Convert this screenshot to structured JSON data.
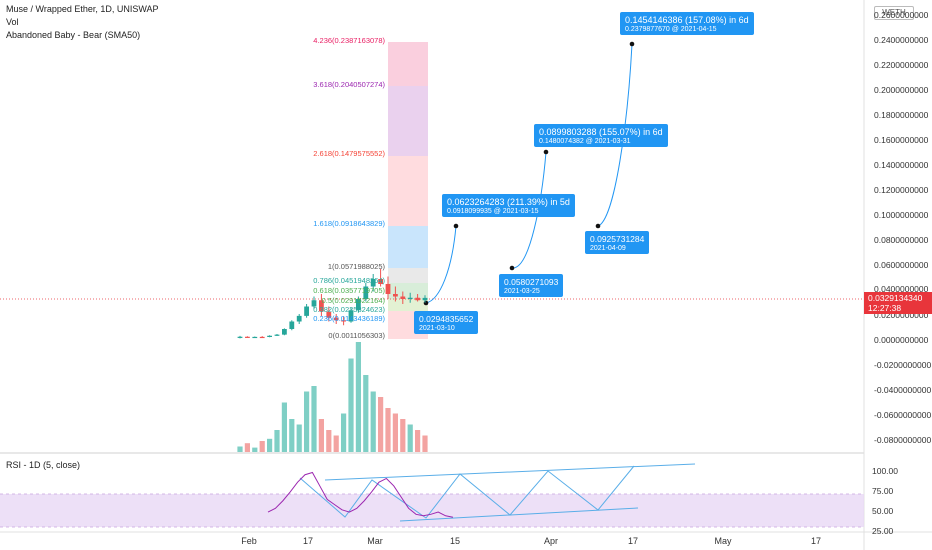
{
  "legend": {
    "title": "Muse / Wrapped Ether, 1D, UNISWAP",
    "vol": "Vol",
    "indicator": "Abandoned Baby - Bear (SMA50)",
    "rsi": "RSI - 1D (5, close)"
  },
  "currency_button": "WETH",
  "price_axis": [
    "0.2600000000",
    "0.2400000000",
    "0.2200000000",
    "0.2000000000",
    "0.1800000000",
    "0.1600000000",
    "0.1400000000",
    "0.1200000000",
    "0.1000000000",
    "0.0800000000",
    "0.0600000000",
    "0.0400000000",
    "0.0200000000",
    "0.0000000000",
    "-0.0200000000",
    "-0.0400000000",
    "-0.0600000000",
    "-0.0800000000"
  ],
  "current_price": {
    "value": "0.0329134340",
    "countdown": "12:27:38"
  },
  "rsi_axis": [
    "100.00",
    "75.00",
    "50.00",
    "25.00"
  ],
  "time_axis": [
    "Feb",
    "17",
    "Mar",
    "15",
    "Apr",
    "17",
    "May",
    "17"
  ],
  "fib_levels": [
    {
      "label": "4.236(0.2387163078)",
      "color": "#e91e63"
    },
    {
      "label": "3.618(0.2040507274)",
      "color": "#9c27b0"
    },
    {
      "label": "2.618(0.1479575552)",
      "color": "#f44336"
    },
    {
      "label": "1.618(0.0918643829)",
      "color": "#2196f3"
    },
    {
      "label": "1(0.0571988025)",
      "color": "#555555"
    },
    {
      "label": "0.786(0.0451948264)",
      "color": "#26a69a"
    },
    {
      "label": "0.618(0.0357719705)",
      "color": "#4caf50"
    },
    {
      "label": "0.5(0.0291522164)",
      "color": "#4caf50"
    },
    {
      "label": "0.382(0.0225324623)",
      "color": "#26a69a"
    },
    {
      "label": "0.236(0.0143436189)",
      "color": "#2196f3"
    },
    {
      "label": "0(0.0011056303)",
      "color": "#555555"
    }
  ],
  "callouts": [
    {
      "line1": "0.1454146386 (157.08%) in 6d",
      "line2": "0.2379877670 @ 2021-04-15"
    },
    {
      "line1": "0.0899803288 (155.07%) in 6d",
      "line2": "0.1480074382 @ 2021-03-31"
    },
    {
      "line1": "0.0623264283 (211.39%) in 5d",
      "line2": "0.0918099935 @ 2021-03-15"
    },
    {
      "line1": "0.0925731284",
      "line2": "2021-04-09"
    },
    {
      "line1": "0.0580271093",
      "line2": "2021-03-25"
    },
    {
      "line1": "0.0294835652",
      "line2": "2021-03-10"
    }
  ],
  "colors": {
    "up": "#26a69a",
    "down": "#ef5350",
    "accent": "#2196f3",
    "rsi_line": "#9c27b0"
  },
  "chart_data": {
    "type": "candlestick",
    "price_range": [
      -0.09,
      0.265
    ],
    "candles": [
      {
        "o": 0.0015,
        "h": 0.0025,
        "l": 0.0005,
        "c": 0.0018
      },
      {
        "o": 0.0018,
        "h": 0.0022,
        "l": 0.001,
        "c": 0.0015
      },
      {
        "o": 0.0015,
        "h": 0.002,
        "l": 0.0012,
        "c": 0.0017
      },
      {
        "o": 0.0017,
        "h": 0.0023,
        "l": 0.0013,
        "c": 0.0016
      },
      {
        "o": 0.0016,
        "h": 0.003,
        "l": 0.0014,
        "c": 0.0026
      },
      {
        "o": 0.0026,
        "h": 0.004,
        "l": 0.0024,
        "c": 0.0035
      },
      {
        "o": 0.0035,
        "h": 0.0085,
        "l": 0.003,
        "c": 0.008
      },
      {
        "o": 0.008,
        "h": 0.015,
        "l": 0.007,
        "c": 0.014
      },
      {
        "o": 0.014,
        "h": 0.02,
        "l": 0.012,
        "c": 0.0185
      },
      {
        "o": 0.0185,
        "h": 0.028,
        "l": 0.017,
        "c": 0.026
      },
      {
        "o": 0.026,
        "h": 0.034,
        "l": 0.024,
        "c": 0.031
      },
      {
        "o": 0.031,
        "h": 0.036,
        "l": 0.018,
        "c": 0.022
      },
      {
        "o": 0.022,
        "h": 0.026,
        "l": 0.014,
        "c": 0.017
      },
      {
        "o": 0.017,
        "h": 0.02,
        "l": 0.012,
        "c": 0.015
      },
      {
        "o": 0.015,
        "h": 0.018,
        "l": 0.011,
        "c": 0.014
      },
      {
        "o": 0.014,
        "h": 0.025,
        "l": 0.013,
        "c": 0.023
      },
      {
        "o": 0.023,
        "h": 0.034,
        "l": 0.021,
        "c": 0.032
      },
      {
        "o": 0.032,
        "h": 0.045,
        "l": 0.03,
        "c": 0.042
      },
      {
        "o": 0.042,
        "h": 0.052,
        "l": 0.038,
        "c": 0.048
      },
      {
        "o": 0.048,
        "h": 0.056,
        "l": 0.042,
        "c": 0.044
      },
      {
        "o": 0.044,
        "h": 0.05,
        "l": 0.032,
        "c": 0.036
      },
      {
        "o": 0.036,
        "h": 0.042,
        "l": 0.03,
        "c": 0.034
      },
      {
        "o": 0.034,
        "h": 0.038,
        "l": 0.028,
        "c": 0.032
      },
      {
        "o": 0.032,
        "h": 0.037,
        "l": 0.029,
        "c": 0.033
      },
      {
        "o": 0.033,
        "h": 0.036,
        "l": 0.03,
        "c": 0.031
      },
      {
        "o": 0.031,
        "h": 0.035,
        "l": 0.029,
        "c": 0.0329
      }
    ],
    "volume": [
      0.05,
      0.08,
      0.04,
      0.1,
      0.12,
      0.2,
      0.45,
      0.3,
      0.25,
      0.55,
      0.6,
      0.3,
      0.2,
      0.15,
      0.35,
      0.85,
      1.0,
      0.7,
      0.55,
      0.5,
      0.4,
      0.35,
      0.3,
      0.25,
      0.2,
      0.15
    ],
    "volume_up": [
      true,
      false,
      true,
      false,
      true,
      true,
      true,
      true,
      true,
      true,
      true,
      false,
      false,
      false,
      true,
      true,
      true,
      true,
      true,
      false,
      false,
      false,
      false,
      true,
      false,
      false
    ],
    "rsi": [
      45,
      50,
      60,
      72,
      85,
      95,
      98,
      80,
      62,
      55,
      48,
      45,
      50,
      60,
      72,
      85,
      90,
      80,
      65,
      50,
      42,
      40,
      42,
      45,
      40,
      38
    ]
  }
}
